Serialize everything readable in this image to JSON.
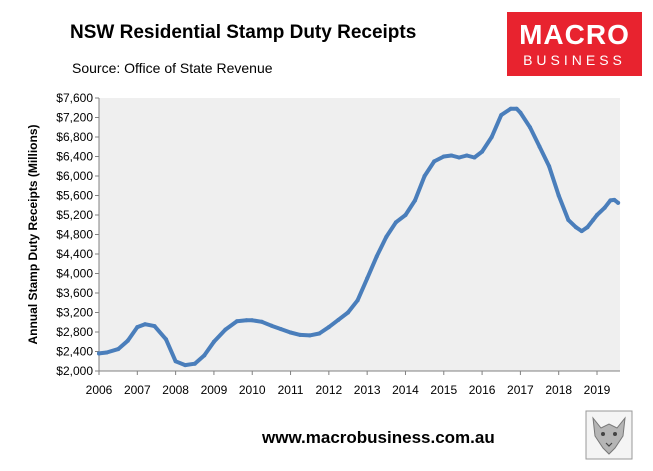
{
  "colors": {
    "plot_bg": "#efefef",
    "line": "#4a7ebb",
    "brand": "#e8232f"
  },
  "logo": {
    "line1": "MACRO",
    "line2": "BUSINESS"
  },
  "footer": {
    "url": "www.macrobusiness.com.au"
  },
  "chart_data": {
    "type": "line",
    "title": "NSW Residential Stamp Duty Receipts",
    "subtitle": "Source: Office of State Revenue",
    "xlabel": "",
    "ylabel": "Annual Stamp Duty Receipts (Millions)",
    "xlim": [
      2006,
      2019.6
    ],
    "ylim": [
      2000,
      7600
    ],
    "grid": false,
    "legend": "none",
    "x_ticks": [
      "2006",
      "2007",
      "2008",
      "2009",
      "2010",
      "2011",
      "2012",
      "2013",
      "2014",
      "2015",
      "2016",
      "2017",
      "2018",
      "2019"
    ],
    "y_ticks": [
      "$2,000",
      "$2,400",
      "$2,800",
      "$3,200",
      "$3,600",
      "$4,000",
      "$4,400",
      "$4,800",
      "$5,200",
      "$5,600",
      "$6,000",
      "$6,400",
      "$6,800",
      "$7,200",
      "$7,600"
    ],
    "series": [
      {
        "x": [
          2006.0,
          2006.2,
          2006.5,
          2006.75,
          2007.0,
          2007.2,
          2007.45,
          2007.75,
          2008.0,
          2008.25,
          2008.5,
          2008.75,
          2009.0,
          2009.3,
          2009.6,
          2009.85,
          2010.0,
          2010.25,
          2010.5,
          2010.75,
          2011.0,
          2011.25,
          2011.5,
          2011.75,
          2012.0,
          2012.25,
          2012.5,
          2012.75,
          2013.0,
          2013.25,
          2013.5,
          2013.75,
          2014.0,
          2014.25,
          2014.5,
          2014.75,
          2015.0,
          2015.2,
          2015.4,
          2015.6,
          2015.8,
          2016.0,
          2016.25,
          2016.5,
          2016.75,
          2016.9,
          2017.0,
          2017.25,
          2017.5,
          2017.75,
          2018.0,
          2018.25,
          2018.45,
          2018.6,
          2018.75,
          2018.9,
          2019.0,
          2019.2,
          2019.35,
          2019.45,
          2019.55
        ],
        "y": [
          2360,
          2380,
          2450,
          2620,
          2900,
          2960,
          2920,
          2650,
          2200,
          2120,
          2150,
          2320,
          2600,
          2850,
          3020,
          3040,
          3040,
          3010,
          2930,
          2860,
          2790,
          2740,
          2730,
          2770,
          2900,
          3050,
          3200,
          3450,
          3900,
          4350,
          4750,
          5050,
          5200,
          5500,
          6000,
          6300,
          6400,
          6420,
          6380,
          6420,
          6380,
          6500,
          6800,
          7250,
          7380,
          7380,
          7300,
          7000,
          6600,
          6200,
          5600,
          5100,
          4950,
          4870,
          4950,
          5100,
          5200,
          5350,
          5500,
          5510,
          5450
        ]
      }
    ]
  }
}
